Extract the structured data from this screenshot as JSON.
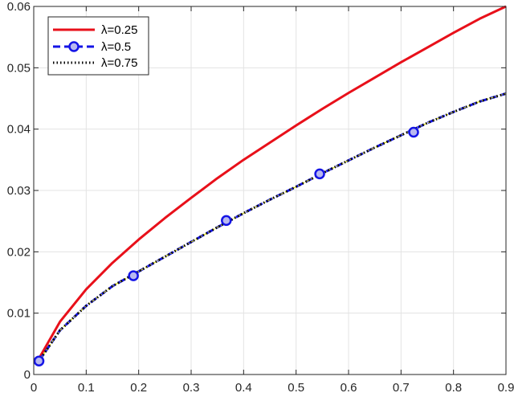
{
  "chart_data": {
    "type": "line",
    "title": "",
    "xlabel": "",
    "ylabel": "",
    "xlim": [
      0,
      0.9
    ],
    "ylim": [
      0,
      0.06
    ],
    "xticks": [
      0,
      0.1,
      0.2,
      0.3,
      0.4,
      0.5,
      0.6,
      0.7,
      0.8,
      0.9
    ],
    "yticks": [
      0,
      0.01,
      0.02,
      0.03,
      0.04,
      0.05,
      0.06
    ],
    "grid": true,
    "legend_position": "top-left",
    "series": [
      {
        "name": "λ=0.25",
        "color": "#e8101a",
        "style": "solid",
        "x": [
          0.01,
          0.05,
          0.1,
          0.15,
          0.2,
          0.25,
          0.3,
          0.35,
          0.4,
          0.45,
          0.5,
          0.55,
          0.6,
          0.65,
          0.7,
          0.75,
          0.8,
          0.85,
          0.9
        ],
        "y": [
          0.0026,
          0.0086,
          0.0139,
          0.0182,
          0.022,
          0.0255,
          0.0288,
          0.032,
          0.035,
          0.0378,
          0.0406,
          0.0433,
          0.0459,
          0.0484,
          0.0509,
          0.0533,
          0.0557,
          0.058,
          0.06
        ]
      },
      {
        "name": "λ=0.5",
        "color": "#1414e6",
        "style": "dashed",
        "marker": "circle",
        "x": [
          0.01,
          0.05,
          0.1,
          0.15,
          0.2,
          0.25,
          0.3,
          0.35,
          0.4,
          0.45,
          0.5,
          0.55,
          0.6,
          0.65,
          0.7,
          0.75,
          0.8,
          0.85,
          0.9
        ],
        "y": [
          0.0022,
          0.0072,
          0.0112,
          0.0144,
          0.0168,
          0.0192,
          0.0216,
          0.024,
          0.0263,
          0.0285,
          0.0306,
          0.0328,
          0.0349,
          0.037,
          0.039,
          0.041,
          0.0428,
          0.0445,
          0.0458
        ],
        "marker_x": [
          0.01,
          0.19,
          0.367,
          0.545,
          0.724
        ],
        "marker_y": [
          0.0022,
          0.0161,
          0.0251,
          0.0327,
          0.0395
        ]
      },
      {
        "name": "λ=0.75",
        "color": "#000000",
        "style": "dotted",
        "x": [
          0.01,
          0.05,
          0.1,
          0.15,
          0.2,
          0.25,
          0.3,
          0.35,
          0.4,
          0.45,
          0.5,
          0.55,
          0.6,
          0.65,
          0.7,
          0.75,
          0.8,
          0.85,
          0.9
        ],
        "y": [
          0.0022,
          0.0072,
          0.0112,
          0.0144,
          0.0168,
          0.0192,
          0.0216,
          0.024,
          0.0263,
          0.0285,
          0.0306,
          0.0328,
          0.0349,
          0.037,
          0.039,
          0.041,
          0.0428,
          0.0445,
          0.0458
        ]
      }
    ]
  }
}
